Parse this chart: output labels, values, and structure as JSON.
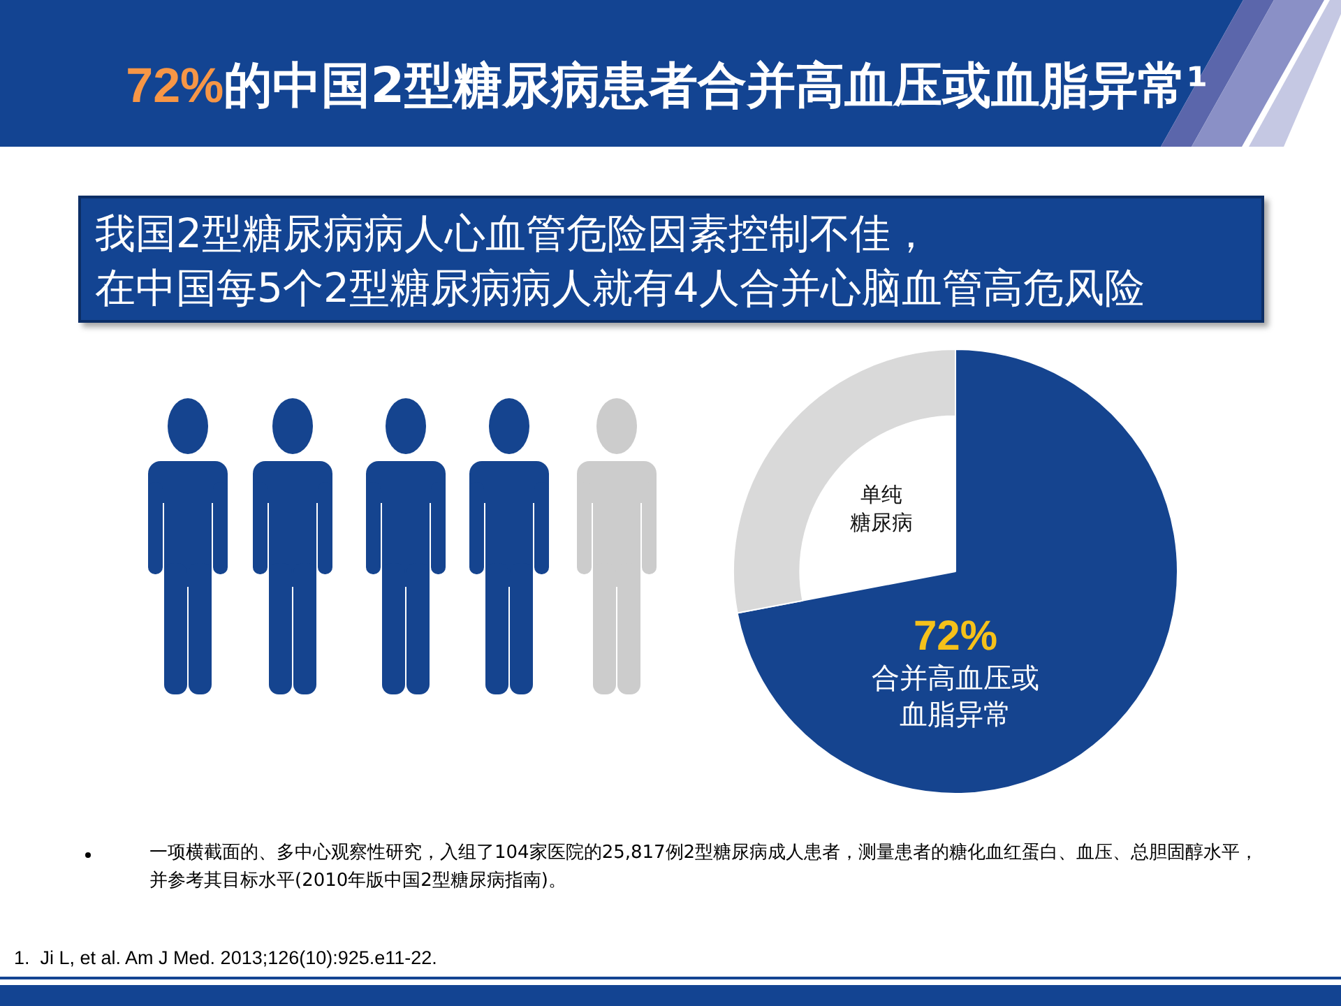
{
  "chart_data": {
    "type": "pie",
    "title": "72%的中国2型糖尿病患者合并高血压或血脂异常¹",
    "subtitle": "我国2型糖尿病病人心血管危险因素控制不佳，在中国每5个2型糖尿病病人就有4人合并心脑血管高危风险",
    "categories": [
      "合并高血压或血脂异常",
      "单纯糖尿病"
    ],
    "values": [
      72,
      28
    ],
    "colors": [
      "#15448f",
      "#d9d9d9"
    ],
    "value_labels": [
      "72%",
      null
    ],
    "annotations": [
      "一项横截面的、多中心观察性研究，入组了104家医院的25,817例2型糖尿病成人患者，测量患者的糖化血红蛋白、血压、总胆固醇水平，并参考其目标水平(2010年版中国2型糖尿病指南)。",
      "1.  Ji L, et al. Am J Med. 2013;126(10):925.e11-22."
    ]
  }
}
